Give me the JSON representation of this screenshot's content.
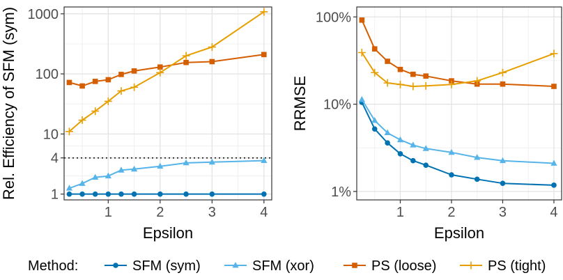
{
  "legend": {
    "title": "Method:",
    "entries": [
      {
        "name": "SFM (sym)",
        "color": "#0072B2",
        "marker": "circle"
      },
      {
        "name": "SFM (xor)",
        "color": "#56B4E9",
        "marker": "triangle"
      },
      {
        "name": "PS (loose)",
        "color": "#D55E00",
        "marker": "square"
      },
      {
        "name": "PS (tight)",
        "color": "#E69F00",
        "marker": "plus"
      }
    ]
  },
  "chart_data": [
    {
      "type": "line",
      "title": "",
      "xlabel": "Epsilon",
      "ylabel": "Rel. Efficiency of SFM (sym)",
      "yscale": "log",
      "xlim": [
        0.15,
        4.15
      ],
      "ylim": [
        0.8,
        1300
      ],
      "xticks": [
        1,
        2,
        3,
        4
      ],
      "xtick_labels": [
        "1",
        "2",
        "3",
        "4"
      ],
      "yticks": [
        1,
        4,
        10,
        100,
        1000
      ],
      "ytick_labels": [
        "1",
        "4",
        "10",
        "100",
        "1000"
      ],
      "reference_line": {
        "y": 4,
        "style": "dotted"
      },
      "x": [
        0.25,
        0.5,
        0.75,
        1.0,
        1.25,
        1.5,
        2.0,
        2.5,
        3.0,
        4.0
      ],
      "series": [
        {
          "name": "SFM (sym)",
          "values": [
            1,
            1,
            1,
            1,
            1,
            1,
            1,
            1,
            1,
            1
          ]
        },
        {
          "name": "SFM (xor)",
          "values": [
            1.25,
            1.5,
            1.9,
            2.0,
            2.5,
            2.6,
            2.9,
            3.3,
            3.4,
            3.6
          ]
        },
        {
          "name": "PS (loose)",
          "values": [
            72,
            63,
            75,
            80,
            98,
            112,
            130,
            155,
            160,
            210
          ]
        },
        {
          "name": "PS (tight)",
          "values": [
            11,
            17,
            24,
            35,
            52,
            60,
            105,
            200,
            280,
            1080
          ]
        }
      ]
    },
    {
      "type": "line",
      "title": "",
      "xlabel": "Epsilon",
      "ylabel": "RRMSE",
      "yscale": "log",
      "xlim": [
        0.15,
        4.15
      ],
      "ylim": [
        0.8,
        130
      ],
      "xticks": [
        1,
        2,
        3,
        4
      ],
      "xtick_labels": [
        "1",
        "2",
        "3",
        "4"
      ],
      "yticks": [
        1,
        10,
        100
      ],
      "ytick_labels": [
        "1%",
        "10%",
        "100%"
      ],
      "x": [
        0.25,
        0.5,
        0.75,
        1.0,
        1.25,
        1.5,
        2.0,
        2.5,
        3.0,
        4.0
      ],
      "series": [
        {
          "name": "SFM (sym)",
          "values": [
            10.5,
            5.2,
            3.6,
            2.7,
            2.25,
            2.0,
            1.55,
            1.38,
            1.24,
            1.18
          ]
        },
        {
          "name": "SFM (xor)",
          "values": [
            11.3,
            6.5,
            4.7,
            3.9,
            3.4,
            3.1,
            2.8,
            2.45,
            2.25,
            2.1
          ]
        },
        {
          "name": "PS (loose)",
          "values": [
            92,
            43,
            31,
            25,
            22,
            21,
            18.5,
            17,
            17,
            16
          ]
        },
        {
          "name": "PS (tight)",
          "values": [
            39,
            23,
            17.5,
            16.8,
            16.0,
            16.2,
            16.8,
            18.5,
            23,
            38
          ]
        }
      ]
    }
  ]
}
